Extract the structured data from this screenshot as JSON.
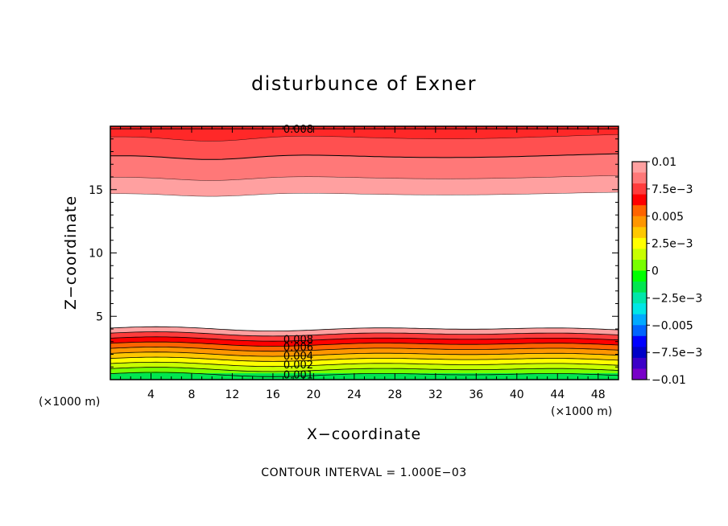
{
  "chart_data": {
    "type": "contour",
    "title": "disturbunce of Exner",
    "xlabel": "X−coordinate",
    "ylabel": "Z−coordinate",
    "x_unit": "(×1000 m)",
    "y_unit": "(×1000 m)",
    "xlim": [
      0,
      50
    ],
    "ylim": [
      0,
      20
    ],
    "x_ticks": [
      4,
      8,
      12,
      16,
      20,
      24,
      28,
      32,
      36,
      40,
      44,
      48
    ],
    "y_ticks": [
      5,
      10,
      15
    ],
    "contour_interval_text": "CONTOUR INTERVAL = 1.000E−03",
    "colorbar": {
      "range": [
        -0.01,
        0.01
      ],
      "labels": [
        "0.01",
        "7.5e−3",
        "0.005",
        "2.5e−3",
        "0",
        "−2.5e−3",
        "−0.005",
        "−7.5e−3",
        "−0.01"
      ],
      "colors": [
        "#ffa0a0",
        "#ff7878",
        "#ff3c3c",
        "#ff0000",
        "#ff6400",
        "#ff9600",
        "#ffc800",
        "#ffff00",
        "#c8ff00",
        "#78ff00",
        "#00ff00",
        "#00e650",
        "#00e6aa",
        "#00e6e6",
        "#00aaff",
        "#0064ff",
        "#0000ff",
        "#0000c8",
        "#3c00c8",
        "#7800c8"
      ]
    },
    "contour_labels": [
      {
        "text": "0.008",
        "x": 18.5,
        "y": 19.8
      },
      {
        "text": "0.008",
        "x": 18.5,
        "y": 3.2
      },
      {
        "text": "0.006",
        "x": 18.5,
        "y": 2.6
      },
      {
        "text": "0.004",
        "x": 18.5,
        "y": 1.9
      },
      {
        "text": "0.002",
        "x": 18.5,
        "y": 1.2
      },
      {
        "text": "0.001",
        "x": 18.5,
        "y": 0.4
      }
    ],
    "upper_field": {
      "description_levels": [
        0.006,
        0.007,
        0.008,
        0.009
      ],
      "base_heights": [
        14.7,
        16.0,
        17.7,
        19.2
      ],
      "colors": [
        "#ffa0a0",
        "#ff7878",
        "#ff5050",
        "#ff2828"
      ]
    },
    "lower_field": {
      "levels": [
        0.0,
        0.001,
        0.002,
        0.003,
        0.004,
        0.005,
        0.006,
        0.007,
        0.008,
        0.009
      ],
      "base_heights": [
        0.4,
        0.8,
        1.2,
        1.6,
        2.0,
        2.4,
        2.8,
        3.2,
        3.6,
        4.0
      ],
      "colors": [
        "#00e650",
        "#00ff00",
        "#78ff00",
        "#c8ff00",
        "#ffff00",
        "#ffc800",
        "#ff9600",
        "#ff6400",
        "#ff0000",
        "#ff3c3c"
      ]
    }
  }
}
